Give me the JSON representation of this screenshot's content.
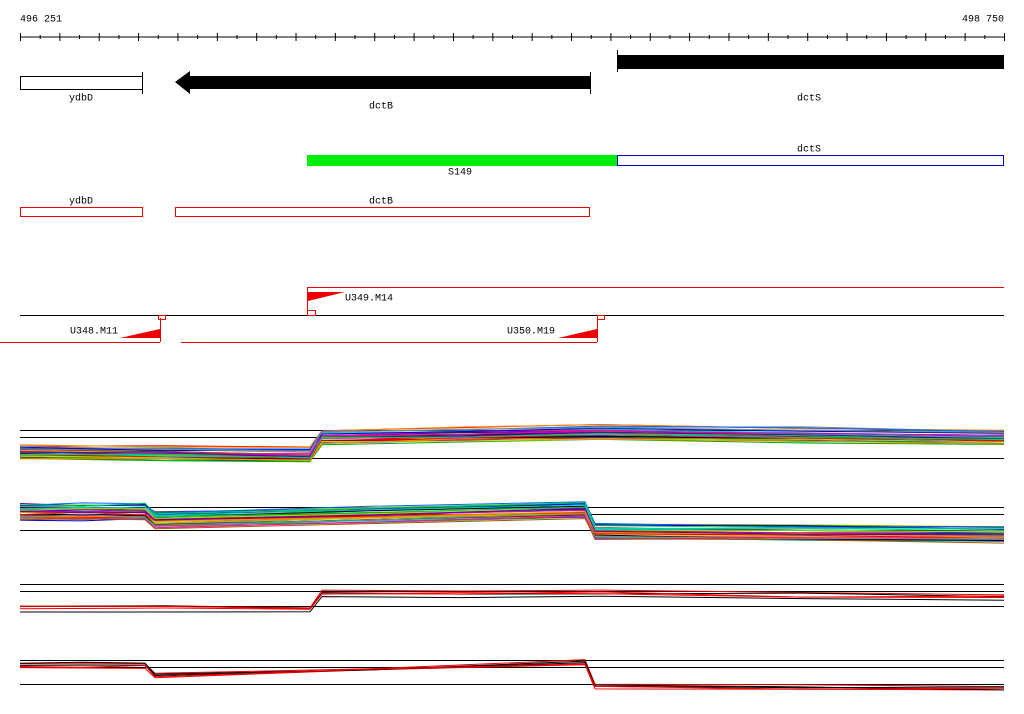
{
  "ruler": {
    "start": "496 251",
    "end": "498 750"
  },
  "genes_track": {
    "labels": [
      "ydbD",
      "dctB",
      "dctS"
    ]
  },
  "transcripts_track": {
    "labels": [
      "dctS",
      "S149"
    ]
  },
  "annotation_track": {
    "labels": [
      "ydbD",
      "dctB"
    ]
  },
  "segments_track": {
    "labels": [
      "U349.M14",
      "U348.M11",
      "U350.M19"
    ]
  }
}
